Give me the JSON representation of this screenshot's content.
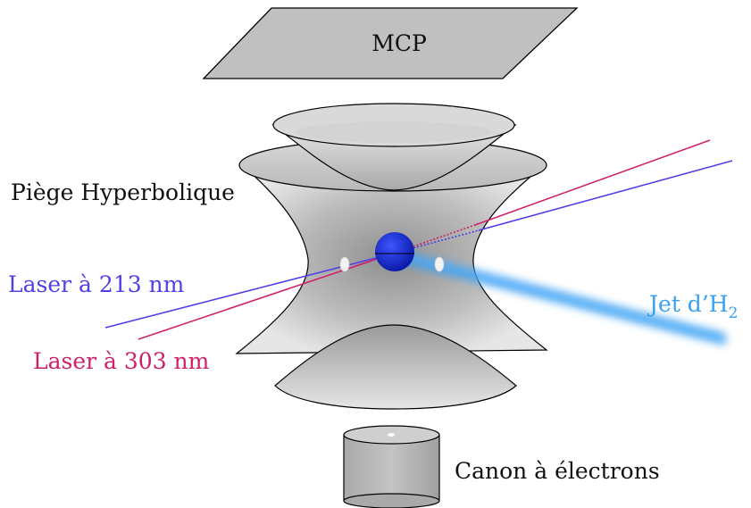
{
  "labels": {
    "mcp": "MCP",
    "trap": "Piège Hyperbolique",
    "laser_213": "Laser à 213 nm",
    "laser_303": "Laser à 303 nm",
    "jet_main": "Jet d’H",
    "jet_sub": "2",
    "gun": "Canon à électrons"
  },
  "colors": {
    "laser_213": "#4f3fe6",
    "laser_303": "#d01f6a",
    "jet": "#3aa0f0",
    "ion_cloud": "#1a2fd8",
    "metal": "#bdbdbd",
    "outline": "#000000"
  }
}
